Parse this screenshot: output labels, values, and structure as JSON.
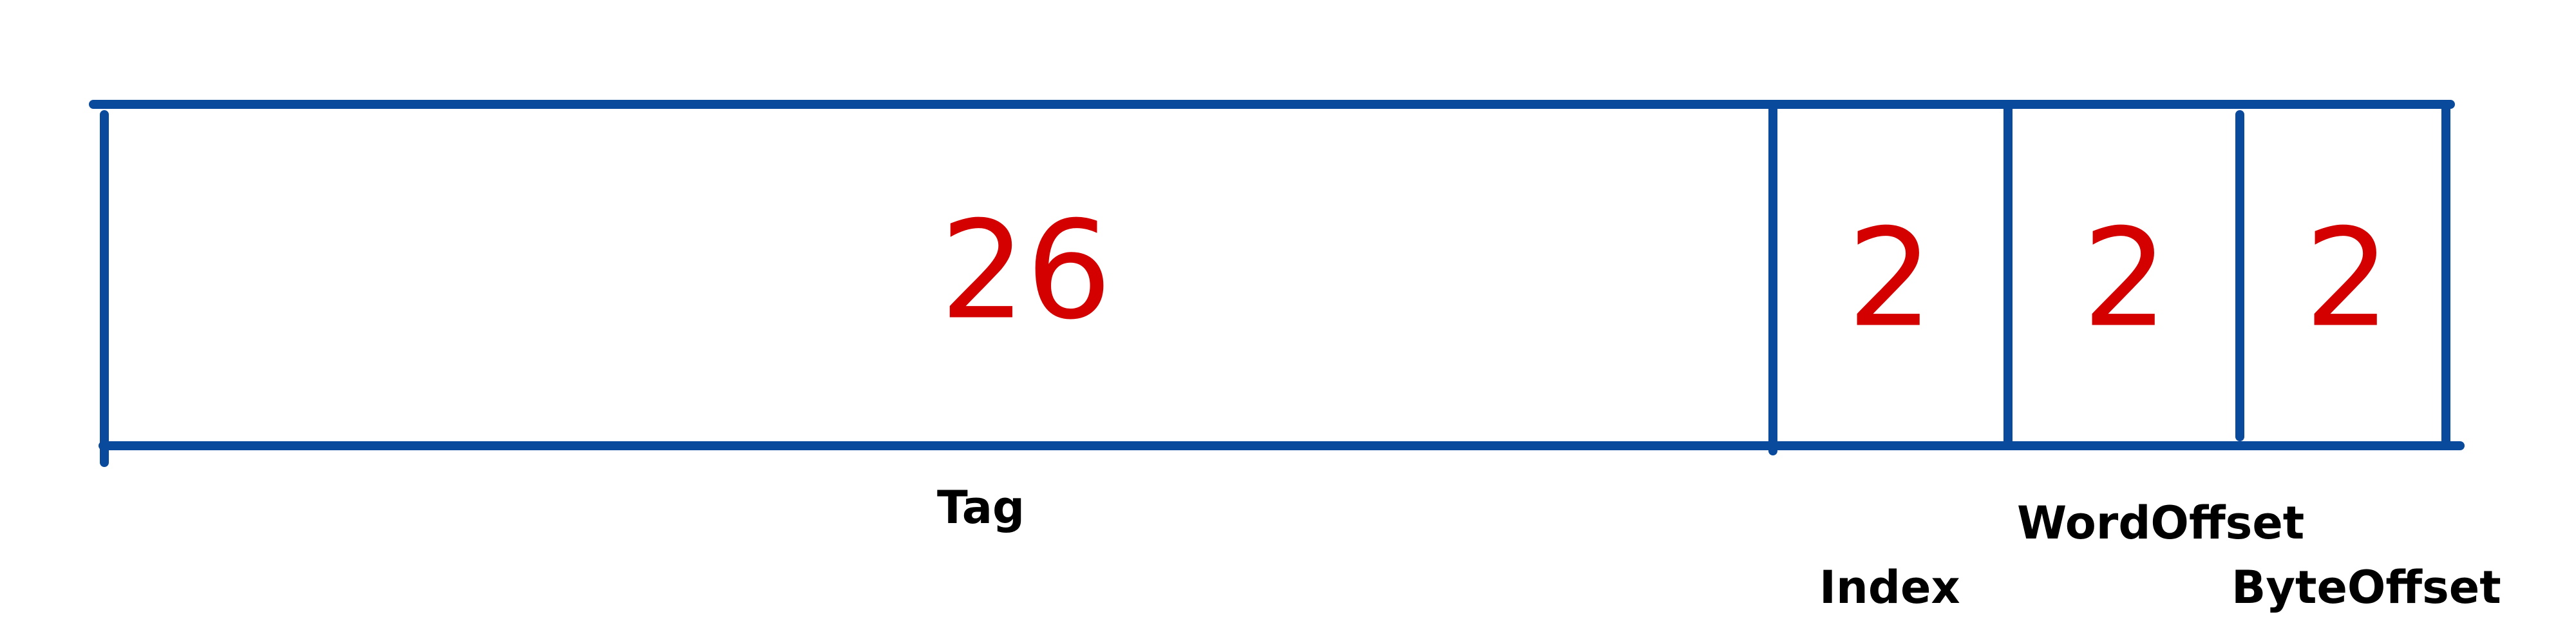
{
  "fields": [
    {
      "id": "tag",
      "bits": "26",
      "label": "Tag"
    },
    {
      "id": "index",
      "bits": "2",
      "label": "Index"
    },
    {
      "id": "word-offset",
      "bits": "2",
      "label": "WordOffset"
    },
    {
      "id": "byte-offset",
      "bits": "2",
      "label": "ByteOffset"
    }
  ],
  "colors": {
    "outline": "#0a4a9c",
    "bits": "#d40000",
    "labels": "#000000"
  }
}
